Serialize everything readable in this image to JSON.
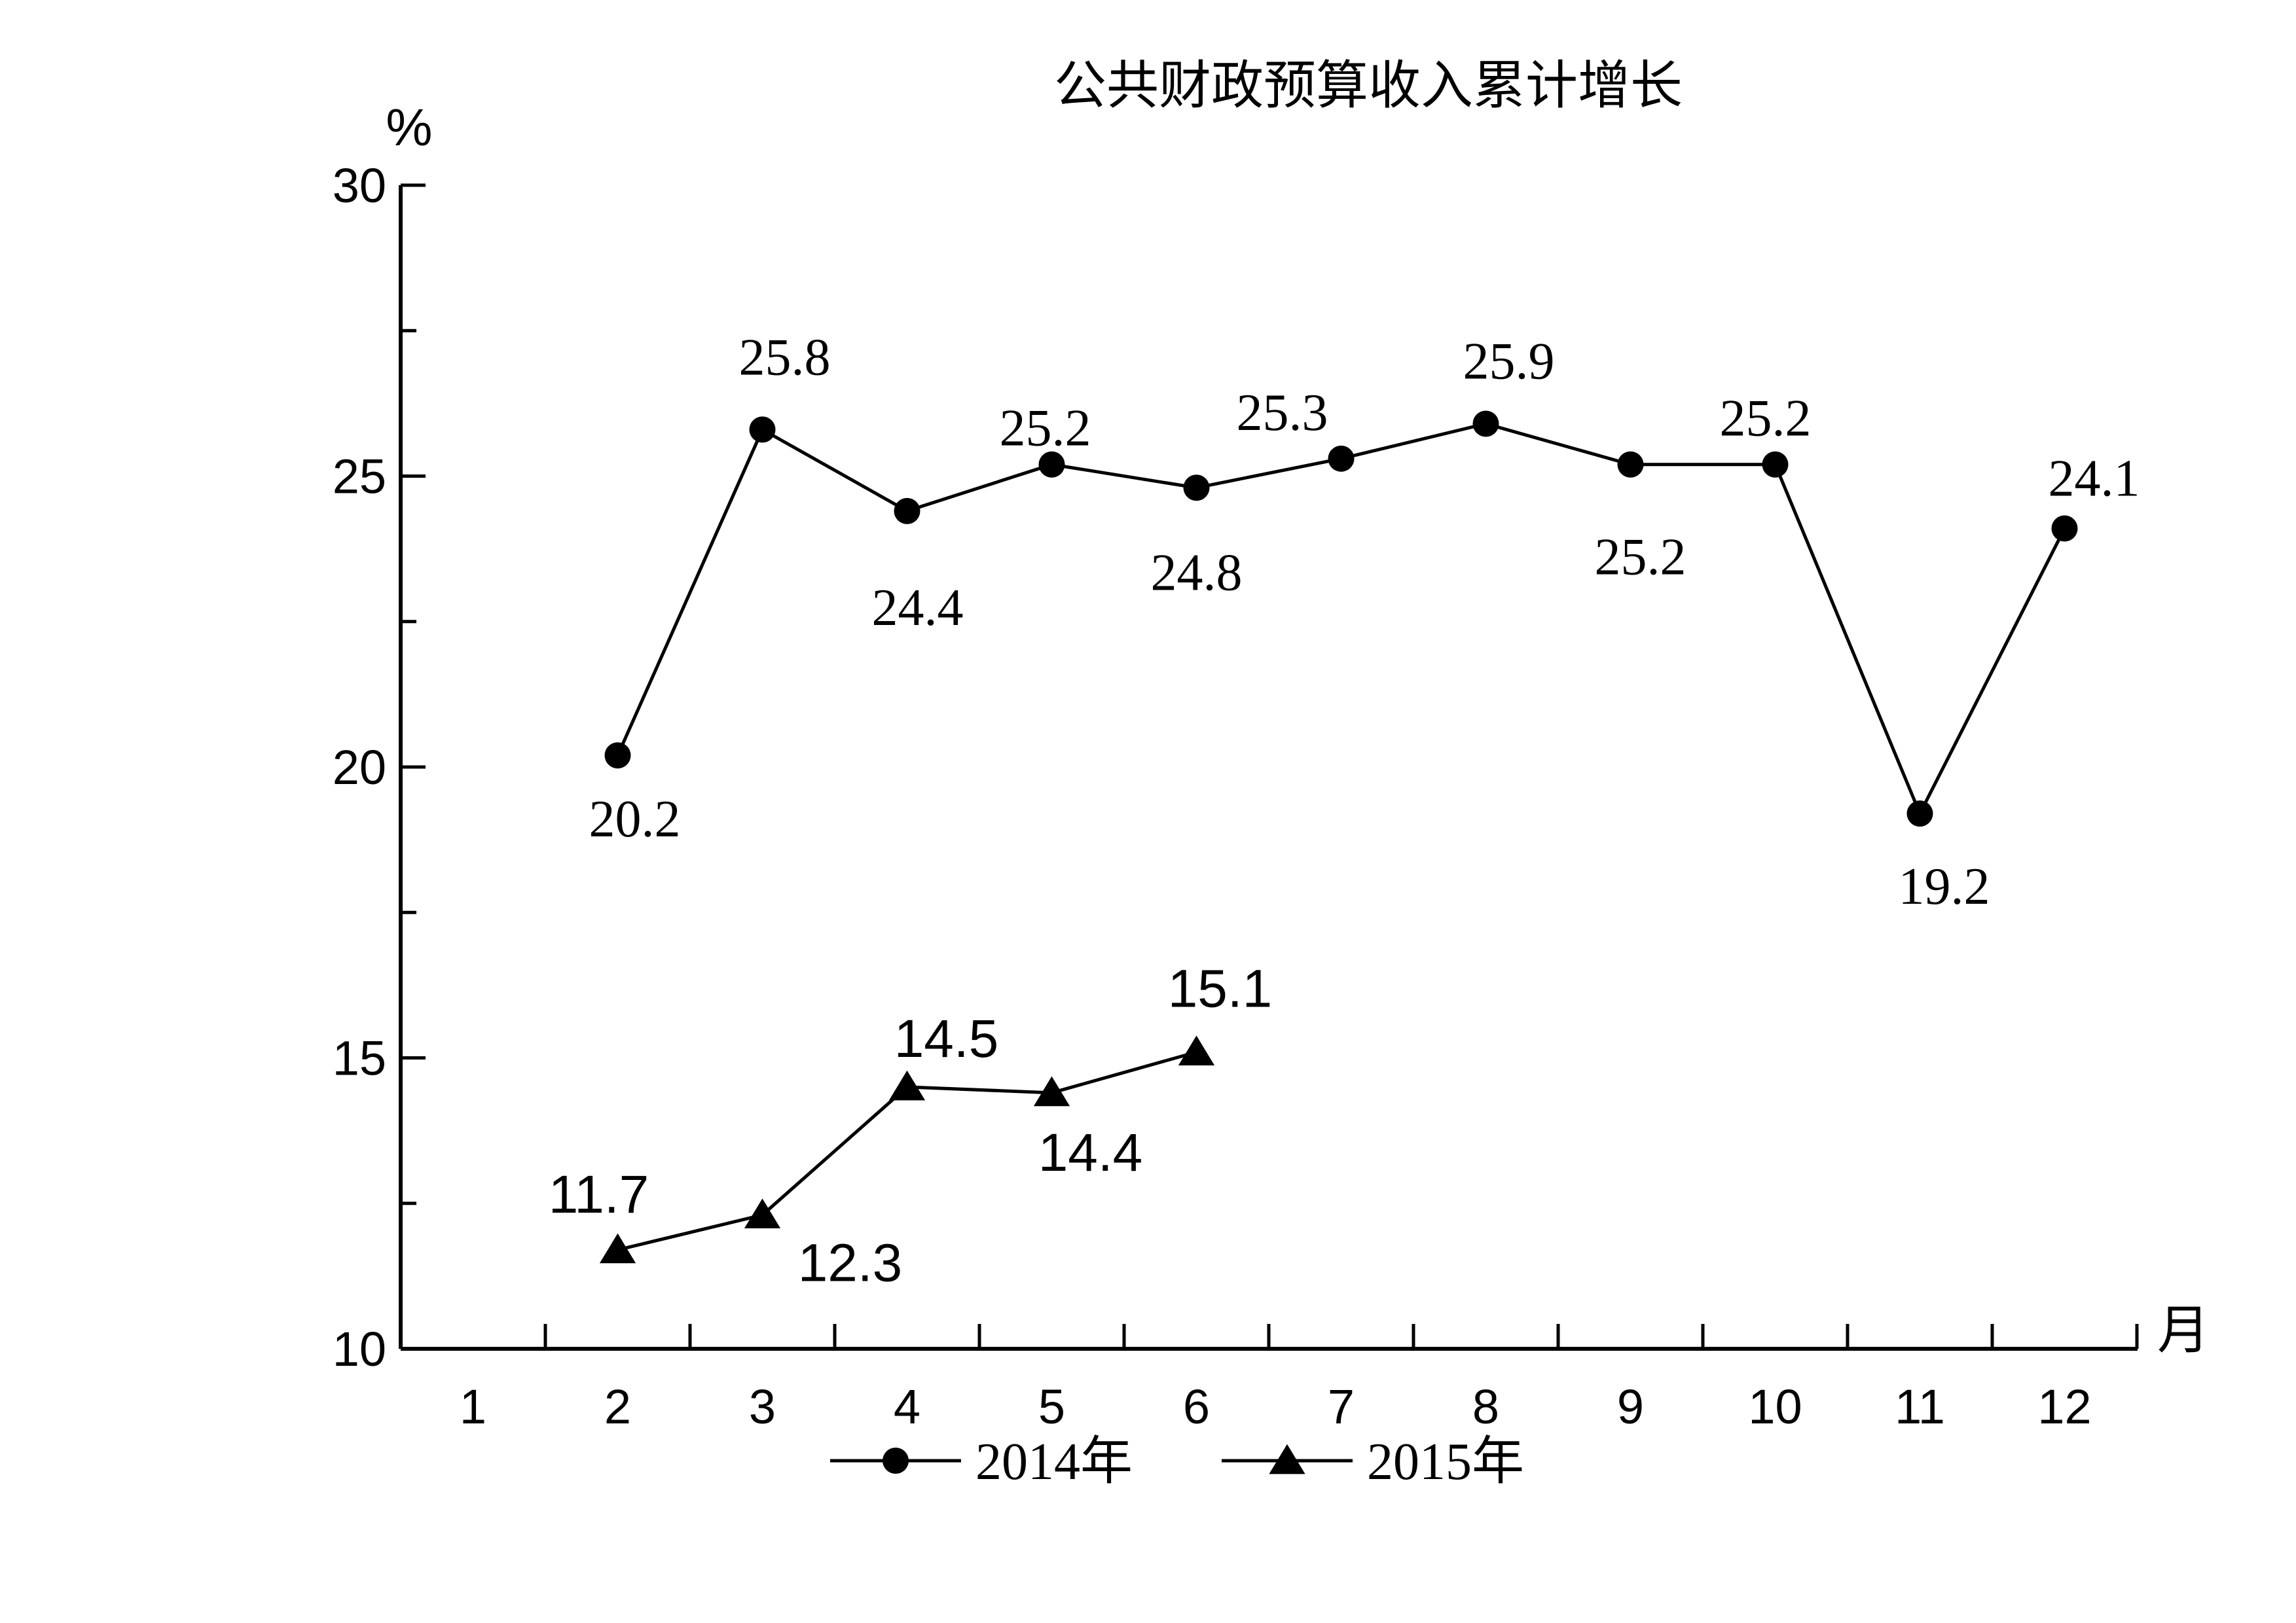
{
  "chart_data": {
    "type": "line",
    "title": "公共财政预算收入累计增长",
    "ylabel": "%",
    "xlabel": "月",
    "ylim": [
      10,
      30
    ],
    "yticks": [
      10,
      15,
      20,
      25,
      30
    ],
    "categories": [
      "1",
      "2",
      "3",
      "4",
      "5",
      "6",
      "7",
      "8",
      "9",
      "10",
      "11",
      "12"
    ],
    "grid": false,
    "legend_position": "bottom",
    "series": [
      {
        "name": "2014年",
        "marker": "circle",
        "color": "#000000",
        "x": [
          2,
          3,
          4,
          5,
          6,
          7,
          8,
          9,
          10,
          11,
          12
        ],
        "values": [
          20.2,
          25.8,
          24.4,
          25.2,
          24.8,
          25.3,
          25.9,
          25.2,
          25.2,
          19.2,
          24.1
        ],
        "labels": [
          "20.2",
          "25.8",
          "24.4",
          "25.2",
          "24.8",
          "25.3",
          "25.9",
          "25.2",
          "25.2",
          "19.2",
          "24.1"
        ]
      },
      {
        "name": "2015年",
        "marker": "triangle",
        "color": "#000000",
        "x": [
          2,
          3,
          4,
          5,
          6
        ],
        "values": [
          11.7,
          12.3,
          14.5,
          14.4,
          15.1
        ],
        "labels": [
          "11.7",
          "12.3",
          "14.5",
          "14.4",
          "15.1"
        ]
      }
    ]
  }
}
